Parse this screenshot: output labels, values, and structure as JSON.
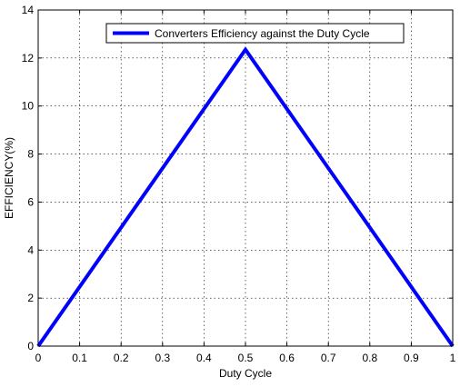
{
  "chart_data": {
    "type": "line",
    "xlabel": "Duty Cycle",
    "ylabel": "EFFICIENCY(%)",
    "xlim": [
      0,
      1
    ],
    "ylim": [
      0,
      14
    ],
    "x_ticks": [
      "0",
      "0.1",
      "0.2",
      "0.3",
      "0.4",
      "0.5",
      "0.6",
      "0.7",
      "0.8",
      "0.9",
      "1"
    ],
    "y_ticks": [
      "0",
      "2",
      "4",
      "6",
      "8",
      "10",
      "12",
      "14"
    ],
    "grid": true,
    "legend_position": "top-right",
    "series": [
      {
        "name": "Converters Efficiency against the Duty Cycle",
        "color": "#0000ff",
        "x": [
          0,
          0.5,
          1
        ],
        "y": [
          0,
          12.35,
          0
        ]
      }
    ]
  }
}
